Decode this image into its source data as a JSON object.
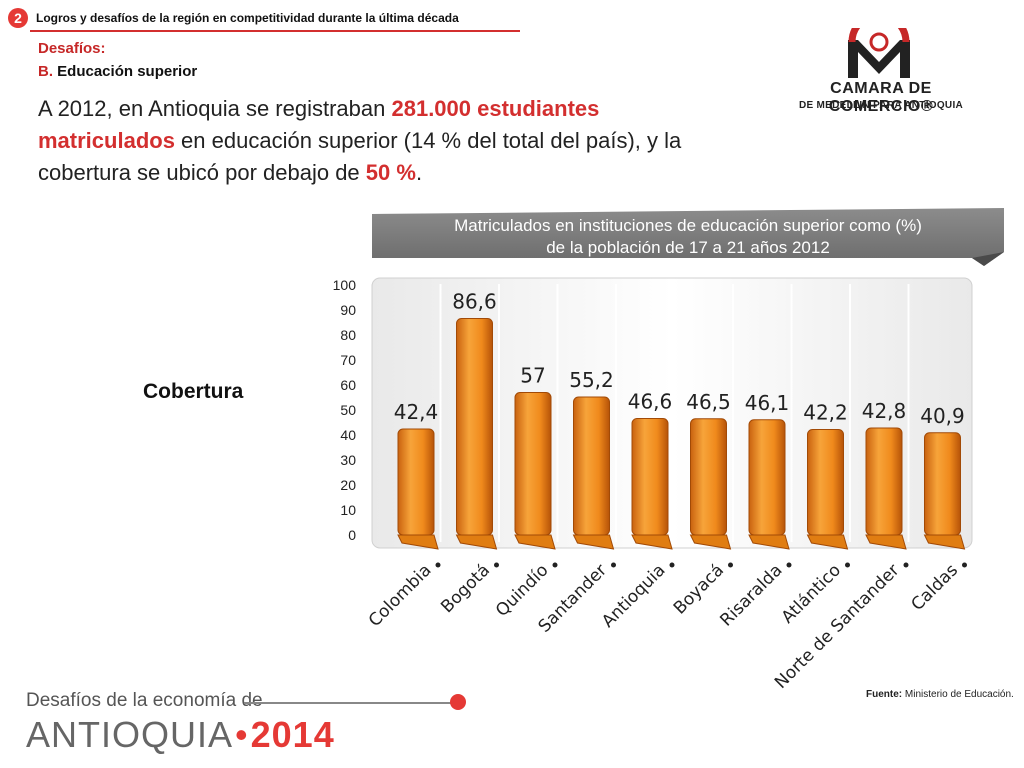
{
  "header": {
    "step": "2",
    "title": "Logros y desafíos de la región en competitividad durante la última década"
  },
  "section": {
    "label": "Desafíos:",
    "letter": "B.",
    "topic": "Educación superior"
  },
  "lead": {
    "p1": "A 2012, en Antioquia se registraban ",
    "hl1": "281.000 estudiantes matriculados",
    "p2": " en educación superior (14 % del total del país), y la cobertura se ubicó por debajo de ",
    "hl2": "50 %",
    "p3": "."
  },
  "logo": {
    "line1": "CAMARA DE COMERCIO®",
    "line2": "DE MEDELLIN PARA ANTIOQUIA"
  },
  "side_label": "Cobertura",
  "footer": {
    "title": "Desafíos de la economía de",
    "main": "ANTIOQUIA",
    "dot": "•",
    "year": "2014"
  },
  "source": {
    "label": "Fuente:",
    "text": " Ministerio de Educación."
  },
  "colors": {
    "accent": "#e53935",
    "bar": "#f39a2a",
    "banner": "#7a7a7a"
  },
  "chart_data": {
    "type": "bar",
    "title": "Matriculados en instituciones de educación superior como (%) de la población de 17 a 21 años 2012",
    "title_lines": [
      "Matriculados en instituciones de educación superior como (%)",
      "de la población de 17 a 21 años 2012"
    ],
    "categories": [
      "Colombia",
      "Bogotá",
      "Quindío",
      "Santander",
      "Antioquia",
      "Boyacá",
      "Risaralda",
      "Atlántico",
      "Norte de Santander",
      "Caldas"
    ],
    "values": [
      42.4,
      86.6,
      57,
      55.2,
      46.6,
      46.5,
      46.1,
      42.2,
      42.8,
      40.9
    ],
    "value_labels": [
      "42,4",
      "86,6",
      "57",
      "55,2",
      "46,6",
      "46,5",
      "46,1",
      "42,2",
      "42,8",
      "40,9"
    ],
    "yticks": [
      "0",
      "10",
      "20",
      "30",
      "40",
      "50",
      "60",
      "70",
      "80",
      "90",
      "100"
    ],
    "ylim": [
      0,
      100
    ],
    "xlabel": "",
    "ylabel": "",
    "grid": false,
    "legend": "none"
  }
}
